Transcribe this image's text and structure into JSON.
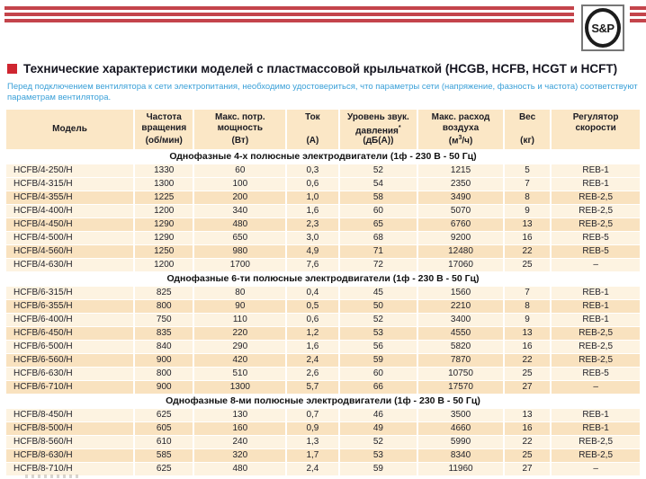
{
  "brand": {
    "logo_text": "S&P"
  },
  "page": {
    "title": "Технические характеристики моделей с пластмассовой крыльчаткой (HCGB, HCFB, HCGT и HCFT)",
    "intro": "Перед подключением вентилятора к сети электропитания, необходимо удостовериться, что параметры сети (напряжение, фазность и частота) соответствуют параметрам вентилятора."
  },
  "colors": {
    "stripe_red": "#c4444b",
    "bullet_red": "#cf2630",
    "intro_blue": "#3aa0d8",
    "header_bg": "#fbe7c6",
    "row_light": "#fdf3e1",
    "row_dark": "#f9e2bf"
  },
  "table": {
    "columns": [
      {
        "top": "Модель",
        "unit": "",
        "valign": "middle"
      },
      {
        "top": "Частота вращения",
        "unit": "(об/мин)"
      },
      {
        "top": "Макс. потр. мощность",
        "unit": "(Вт)"
      },
      {
        "top": "Ток",
        "unit": "(А)"
      },
      {
        "top": "Уровень звук. давления*",
        "unit": "(дБ(А))"
      },
      {
        "top": "Макс. расход воздуха",
        "unit": "(м3/ч)"
      },
      {
        "top": "Вес",
        "unit": "(кг)"
      },
      {
        "top": "Регулятор скорости",
        "unit": ""
      }
    ],
    "sections": [
      {
        "title": "Однофазные 4-х полюсные электродвигатели (1ф - 230 В - 50 Гц)",
        "rows": [
          [
            "HCFB/4-250/H",
            "1330",
            "60",
            "0,3",
            "52",
            "1215",
            "5",
            "REB-1"
          ],
          [
            "HCFB/4-315/H",
            "1300",
            "100",
            "0,6",
            "54",
            "2350",
            "7",
            "REB-1"
          ],
          [
            "HCFB/4-355/H",
            "1225",
            "200",
            "1,0",
            "58",
            "3490",
            "8",
            "REB-2,5"
          ],
          [
            "HCFB/4-400/H",
            "1200",
            "340",
            "1,6",
            "60",
            "5070",
            "9",
            "REB-2,5"
          ],
          [
            "HCFB/4-450/H",
            "1290",
            "480",
            "2,3",
            "65",
            "6760",
            "13",
            "REB-2,5"
          ],
          [
            "HCFB/4-500/H",
            "1290",
            "650",
            "3,0",
            "68",
            "9200",
            "16",
            "REB-5"
          ],
          [
            "HCFB/4-560/H",
            "1250",
            "980",
            "4,9",
            "71",
            "12480",
            "22",
            "REB-5"
          ],
          [
            "HCFB/4-630/H",
            "1200",
            "1700",
            "7,6",
            "72",
            "17060",
            "25",
            "–"
          ]
        ]
      },
      {
        "title": "Однофазные 6-ти полюсные электродвигатели (1ф - 230 В - 50 Гц)",
        "rows": [
          [
            "HCFB/6-315/H",
            "825",
            "80",
            "0,4",
            "45",
            "1560",
            "7",
            "REB-1"
          ],
          [
            "HCFB/6-355/H",
            "800",
            "90",
            "0,5",
            "50",
            "2210",
            "8",
            "REB-1"
          ],
          [
            "HCFB/6-400/H",
            "750",
            "110",
            "0,6",
            "52",
            "3400",
            "9",
            "REB-1"
          ],
          [
            "HCFB/6-450/H",
            "835",
            "220",
            "1,2",
            "53",
            "4550",
            "13",
            "REB-2,5"
          ],
          [
            "HCFB/6-500/H",
            "840",
            "290",
            "1,6",
            "56",
            "5820",
            "16",
            "REB-2,5"
          ],
          [
            "HCFB/6-560/H",
            "900",
            "420",
            "2,4",
            "59",
            "7870",
            "22",
            "REB-2,5"
          ],
          [
            "HCFB/6-630/H",
            "800",
            "510",
            "2,6",
            "60",
            "10750",
            "25",
            "REB-5"
          ],
          [
            "HCFB/6-710/H",
            "900",
            "1300",
            "5,7",
            "66",
            "17570",
            "27",
            "–"
          ]
        ]
      },
      {
        "title": "Однофазные 8-ми полюсные электродвигатели (1ф - 230 В - 50 Гц)",
        "rows": [
          [
            "HCFB/8-450/H",
            "625",
            "130",
            "0,7",
            "46",
            "3500",
            "13",
            "REB-1"
          ],
          [
            "HCFB/8-500/H",
            "605",
            "160",
            "0,9",
            "49",
            "4660",
            "16",
            "REB-1"
          ],
          [
            "HCFB/8-560/H",
            "610",
            "240",
            "1,3",
            "52",
            "5990",
            "22",
            "REB-2,5"
          ],
          [
            "HCFB/8-630/H",
            "585",
            "320",
            "1,7",
            "53",
            "8340",
            "25",
            "REB-2,5"
          ],
          [
            "HCFB/8-710/H",
            "625",
            "480",
            "2,4",
            "59",
            "11960",
            "27",
            "–"
          ]
        ]
      }
    ]
  }
}
